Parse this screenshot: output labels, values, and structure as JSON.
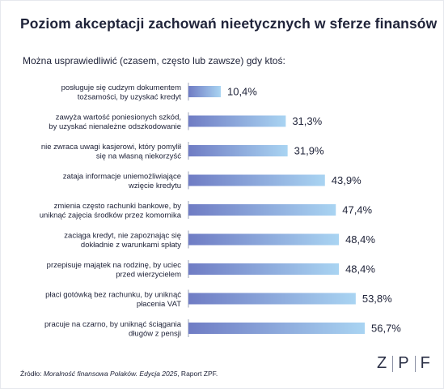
{
  "title": "Poziom akceptacji zachowań nieetycznych w sferze finansów",
  "subtitle": "Można usprawiedliwić (czasem, często lub zawsze) gdy ktoś:",
  "footer": {
    "prefix": "Źródło: ",
    "source_italic": "Moralność finansowa Polaków. Edycja 2025",
    "suffix": ", Raport ZPF."
  },
  "logo": {
    "letters": [
      "Z",
      "P",
      "F"
    ]
  },
  "colors": {
    "bar_start": "#6f7cc4",
    "bar_end": "#a9d4f2",
    "text": "#20243a"
  },
  "chart_data": {
    "type": "bar",
    "orientation": "horizontal",
    "unit": "%",
    "xlim": [
      0,
      60
    ],
    "categories": [
      [
        "posługuje się cudzym dokumentem",
        "tożsamości, by uzyskać kredyt"
      ],
      [
        "zawyża wartość poniesionych szkód,",
        "by uzyskać nienależne odszkodowanie"
      ],
      [
        "nie zwraca uwagi kasjerowi, który pomylił",
        "się na własną niekorzyść"
      ],
      [
        "zataja informacje uniemożliwiające",
        "wzięcie kredytu"
      ],
      [
        "zmienia często rachunki bankowe, by",
        "uniknąć zajęcia środków przez komornika"
      ],
      [
        "zaciąga kredyt, nie zapoznając się",
        "dokładnie z warunkami spłaty"
      ],
      [
        "przepisuje majątek na rodzinę, by uciec",
        "przed wierzycielem"
      ],
      [
        "płaci gotówką bez rachunku, by uniknąć",
        "płacenia VAT"
      ],
      [
        "pracuje na czarno, by uniknąć ściągania",
        "długów z pensji"
      ]
    ],
    "values": [
      10.4,
      31.3,
      31.9,
      43.9,
      47.4,
      48.4,
      48.4,
      53.8,
      56.7
    ],
    "value_labels": [
      "10,4%",
      "31,3%",
      "31,9%",
      "43,9%",
      "47,4%",
      "48,4%",
      "48,4%",
      "53,8%",
      "56,7%"
    ]
  }
}
